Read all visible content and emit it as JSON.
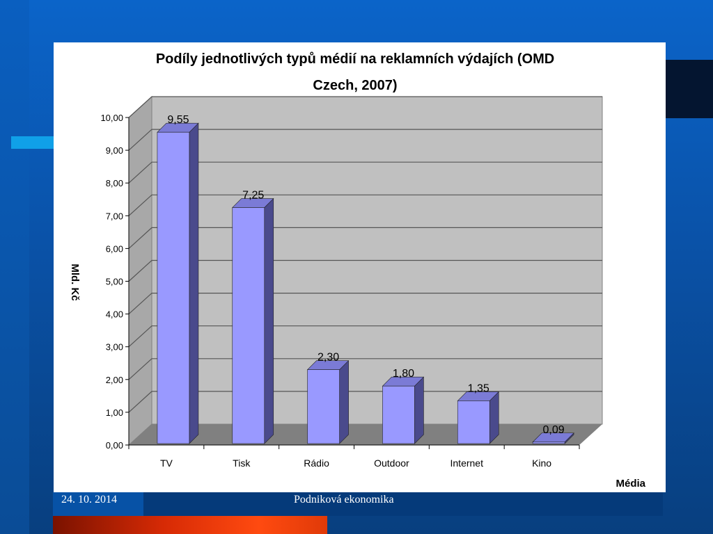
{
  "footer": {
    "date": "24. 10. 2014",
    "title": "Podniková ekonomika"
  },
  "colors": {
    "bar_front": "#9999ff",
    "bar_side": "#4a4a8c",
    "bar_top": "#7b7bd6",
    "plot_back": "#c0c0c0",
    "plot_floor": "#808080"
  },
  "chart_data": {
    "type": "bar",
    "title_line1": "Podíly jednotlivých typů médií na reklamních výdajích (OMD",
    "title_line2": "Czech, 2007)",
    "xlabel": "Média",
    "ylabel": "Mld. Kč",
    "categories": [
      "TV",
      "Tisk",
      "Rádio",
      "Outdoor",
      "Internet",
      "Kino"
    ],
    "values": [
      9.55,
      7.25,
      2.3,
      1.8,
      1.35,
      0.09
    ],
    "value_labels": [
      "9,55",
      "7,25",
      "2,30",
      "1,80",
      "1,35",
      "0,09"
    ],
    "ylim": [
      0,
      10
    ],
    "yticks": [
      "0,00",
      "1,00",
      "2,00",
      "3,00",
      "4,00",
      "5,00",
      "6,00",
      "7,00",
      "8,00",
      "9,00",
      "10,00"
    ],
    "grid": true,
    "style": "3d-column"
  }
}
